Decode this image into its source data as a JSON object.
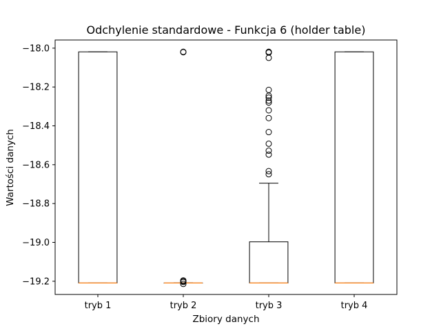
{
  "chart_data": {
    "type": "boxplot",
    "title": "Odchylenie standardowe - Funkcja 6 (holder table)",
    "xlabel": "Zbiory danych",
    "ylabel": "Wartości danych",
    "ylim": [
      -19.268,
      -17.958
    ],
    "yticks": [
      -18.0,
      -18.2,
      -18.4,
      -18.6,
      -18.8,
      -19.0,
      -19.2
    ],
    "ytick_labels": [
      "−18.0",
      "−18.2",
      "−18.4",
      "−18.6",
      "−18.8",
      "−19.0",
      "−19.2"
    ],
    "categories": [
      "tryb 1",
      "tryb 2",
      "tryb 3",
      "tryb 4"
    ],
    "boxes": [
      {
        "q1": -19.209,
        "median": -19.209,
        "q3": -18.019,
        "whisker_low": -19.209,
        "whisker_high": -18.019,
        "outliers": []
      },
      {
        "q1": -19.209,
        "median": -19.209,
        "q3": -19.209,
        "whisker_low": -19.209,
        "whisker_high": -19.209,
        "outliers": [
          -18.019,
          -18.021,
          -19.196,
          -19.2,
          -19.204,
          -19.214
        ]
      },
      {
        "q1": -19.209,
        "median": -19.209,
        "q3": -18.997,
        "whisker_low": -19.209,
        "whisker_high": -18.695,
        "outliers": [
          -18.019,
          -18.021,
          -18.023,
          -18.05,
          -18.215,
          -18.245,
          -18.255,
          -18.27,
          -18.28,
          -18.32,
          -18.36,
          -18.432,
          -18.492,
          -18.528,
          -18.548,
          -18.633,
          -18.649
        ]
      },
      {
        "q1": -19.209,
        "median": -19.209,
        "q3": -18.019,
        "whisker_low": -19.209,
        "whisker_high": -18.019,
        "outliers": []
      }
    ],
    "colors": {
      "box": "#000000",
      "median": "#ff7f0e",
      "outlier": "#000000",
      "background": "#ffffff"
    },
    "grid": false
  }
}
